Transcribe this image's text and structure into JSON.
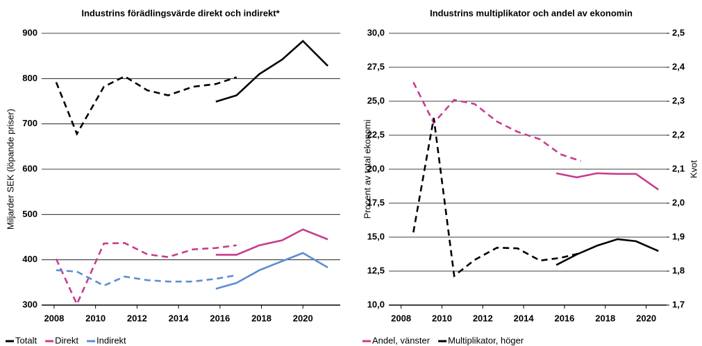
{
  "chart_data": [
    {
      "type": "line",
      "title": "Industrins förädlingsvärde direkt och indirekt*",
      "ylabel": "Miljarder SEK (löpande priser)",
      "xlim": [
        2007.4,
        2021.8
      ],
      "xticks": [
        2008,
        2010,
        2012,
        2014,
        2016,
        2018,
        2020
      ],
      "ylim": [
        300,
        900
      ],
      "yticks": [
        300,
        400,
        500,
        600,
        700,
        800,
        900
      ],
      "grid": true,
      "series": [
        {
          "name": "Totalt",
          "color": "#000000",
          "dashed": {
            "x": [
              2008.1,
              2009.1,
              2010.4,
              2011.4,
              2012.5,
              2013.5,
              2014.7,
              2015.8,
              2016.8
            ],
            "values": [
              792,
              678,
              782,
              805,
              774,
              763,
              782,
              788,
              803
            ]
          },
          "solid": {
            "x": [
              2015.8,
              2016.8,
              2017.9,
              2019.0,
              2020.0,
              2021.2
            ],
            "values": [
              749,
              763,
              810,
              842,
              883,
              828
            ]
          }
        },
        {
          "name": "Direkt",
          "color": "#c83c8c",
          "dashed": {
            "x": [
              2008.1,
              2009.1,
              2010.4,
              2011.4,
              2012.5,
              2013.5,
              2014.7,
              2015.8,
              2016.8
            ],
            "values": [
              402,
              302,
              436,
              437,
              412,
              406,
              423,
              426,
              432
            ]
          },
          "solid": {
            "x": [
              2015.8,
              2016.8,
              2017.9,
              2019.0,
              2020.0,
              2021.2
            ],
            "values": [
              411,
              411,
              432,
              443,
              467,
              445
            ]
          }
        },
        {
          "name": "Indirekt",
          "color": "#5b8ed0",
          "dashed": {
            "x": [
              2008.1,
              2009.1,
              2010.4,
              2011.4,
              2012.5,
              2013.5,
              2014.7,
              2015.8,
              2016.8
            ],
            "values": [
              377,
              374,
              343,
              363,
              355,
              352,
              352,
              358,
              366
            ]
          },
          "solid": {
            "x": [
              2015.8,
              2016.8,
              2017.9,
              2019.0,
              2020.0,
              2021.2
            ],
            "values": [
              336,
              349,
              377,
              397,
              415,
              383
            ]
          }
        }
      ]
    },
    {
      "type": "line",
      "title": "Industrins multiplikator och andel av ekonomin",
      "ylabel": "Procent av total ekonomi",
      "y2label": "Kvot",
      "xlim": [
        2007.4,
        2021.0
      ],
      "xticks": [
        2008,
        2010,
        2012,
        2014,
        2016,
        2018,
        2020
      ],
      "ylim": [
        10,
        30
      ],
      "yticks": [
        {
          "value": 10,
          "label": "10,0"
        },
        {
          "value": 12.5,
          "label": "12,5"
        },
        {
          "value": 15,
          "label": "15,0"
        },
        {
          "value": 17.5,
          "label": "17,5"
        },
        {
          "value": 20,
          "label": "20,0"
        },
        {
          "value": 22.5,
          "label": "22,5"
        },
        {
          "value": 25,
          "label": "25,0"
        },
        {
          "value": 27.5,
          "label": "27,5"
        },
        {
          "value": 30,
          "label": "30,0"
        }
      ],
      "y2lim": [
        1.7,
        2.5
      ],
      "y2ticks": [
        {
          "value": 1.7,
          "label": "1,7"
        },
        {
          "value": 1.8,
          "label": "1,8"
        },
        {
          "value": 1.9,
          "label": "1,9"
        },
        {
          "value": 2.0,
          "label": "2,0"
        },
        {
          "value": 2.1,
          "label": "2,1"
        },
        {
          "value": 2.2,
          "label": "2,2"
        },
        {
          "value": 2.3,
          "label": "2,3"
        },
        {
          "value": 2.4,
          "label": "2,4"
        },
        {
          "value": 2.5,
          "label": "2,5"
        }
      ],
      "grid": true,
      "series": [
        {
          "name": "Andel, vänster",
          "color": "#c83c8c",
          "dashed": {
            "x": [
              2008.6,
              2009.6,
              2010.6,
              2011.6,
              2012.7,
              2013.7,
              2014.8,
              2015.8,
              2016.8
            ],
            "values": [
              26.4,
              23.4,
              25.1,
              24.8,
              23.5,
              22.75,
              22.2,
              21.1,
              20.6
            ]
          },
          "solid": {
            "x": [
              2015.6,
              2016.6,
              2017.6,
              2018.6,
              2019.5,
              2020.6
            ],
            "values": [
              19.7,
              19.4,
              19.7,
              19.65,
              19.65,
              18.5
            ]
          }
        },
        {
          "name": "Multiplikator, höger",
          "color": "#000000",
          "axis": "y2",
          "dashed": {
            "x": [
              2008.6,
              2009.6,
              2010.6,
              2011.6,
              2012.7,
              2013.7,
              2014.8,
              2015.8,
              2016.8
            ],
            "values": [
              1.914,
              2.251,
              1.786,
              1.833,
              1.869,
              1.867,
              1.831,
              1.839,
              1.853
            ]
          },
          "solid": {
            "x": [
              2015.6,
              2016.6,
              2017.6,
              2018.6,
              2019.5,
              2020.6
            ],
            "values": [
              1.818,
              1.849,
              1.875,
              1.894,
              1.888,
              1.859
            ]
          }
        }
      ]
    }
  ]
}
